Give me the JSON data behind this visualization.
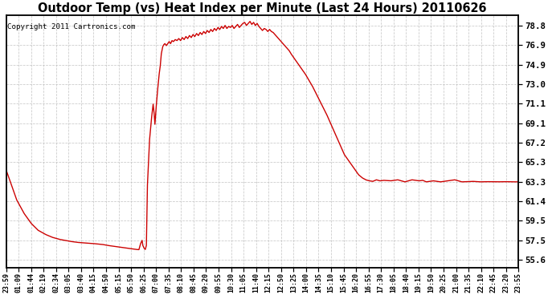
{
  "title": "Outdoor Temp (vs) Heat Index per Minute (Last 24 Hours) 20110626",
  "copyright_text": "Copyright 2011 Cartronics.com",
  "line_color": "#cc0000",
  "background_color": "#ffffff",
  "grid_color": "#bbbbbb",
  "yticks": [
    55.6,
    57.5,
    59.5,
    61.4,
    63.3,
    65.3,
    67.2,
    69.1,
    71.1,
    73.0,
    74.9,
    76.9,
    78.8
  ],
  "ylim": [
    54.8,
    79.8
  ],
  "xtick_labels": [
    "23:59",
    "01:09",
    "01:44",
    "02:19",
    "02:34",
    "03:05",
    "03:40",
    "04:15",
    "04:50",
    "05:15",
    "05:50",
    "06:25",
    "07:00",
    "07:35",
    "08:10",
    "08:45",
    "09:20",
    "09:55",
    "10:30",
    "11:05",
    "11:40",
    "12:15",
    "12:50",
    "13:25",
    "14:00",
    "14:35",
    "15:10",
    "15:45",
    "16:20",
    "16:55",
    "17:30",
    "18:05",
    "18:40",
    "19:15",
    "19:50",
    "20:25",
    "21:00",
    "21:35",
    "22:10",
    "22:45",
    "23:20",
    "23:55"
  ],
  "n_points": 1440,
  "curve_data": [
    [
      0,
      64.5
    ],
    [
      15,
      63.0
    ],
    [
      30,
      61.5
    ],
    [
      50,
      60.2
    ],
    [
      70,
      59.2
    ],
    [
      90,
      58.5
    ],
    [
      110,
      58.1
    ],
    [
      130,
      57.8
    ],
    [
      150,
      57.6
    ],
    [
      165,
      57.5
    ],
    [
      180,
      57.4
    ],
    [
      200,
      57.3
    ],
    [
      220,
      57.25
    ],
    [
      240,
      57.2
    ],
    [
      255,
      57.15
    ],
    [
      270,
      57.1
    ],
    [
      285,
      57.0
    ],
    [
      295,
      56.95
    ],
    [
      305,
      56.9
    ],
    [
      315,
      56.85
    ],
    [
      325,
      56.8
    ],
    [
      335,
      56.75
    ],
    [
      345,
      56.7
    ],
    [
      355,
      56.65
    ],
    [
      365,
      56.6
    ],
    [
      373,
      56.58
    ],
    [
      378,
      57.2
    ],
    [
      382,
      57.5
    ],
    [
      384,
      57.0
    ],
    [
      388,
      56.7
    ],
    [
      391,
      56.6
    ],
    [
      394,
      57.0
    ],
    [
      397,
      63.0
    ],
    [
      403,
      67.5
    ],
    [
      408,
      69.5
    ],
    [
      413,
      71.0
    ],
    [
      416,
      70.0
    ],
    [
      418,
      69.0
    ],
    [
      421,
      70.5
    ],
    [
      425,
      72.2
    ],
    [
      430,
      74.0
    ],
    [
      433,
      74.8
    ],
    [
      436,
      76.0
    ],
    [
      440,
      76.7
    ],
    [
      443,
      76.9
    ],
    [
      446,
      77.0
    ],
    [
      450,
      76.8
    ],
    [
      454,
      77.0
    ],
    [
      458,
      77.2
    ],
    [
      462,
      77.0
    ],
    [
      466,
      77.3
    ],
    [
      470,
      77.2
    ],
    [
      475,
      77.4
    ],
    [
      480,
      77.3
    ],
    [
      485,
      77.5
    ],
    [
      490,
      77.3
    ],
    [
      495,
      77.6
    ],
    [
      500,
      77.4
    ],
    [
      505,
      77.7
    ],
    [
      510,
      77.5
    ],
    [
      515,
      77.8
    ],
    [
      520,
      77.6
    ],
    [
      525,
      77.9
    ],
    [
      530,
      77.7
    ],
    [
      535,
      78.0
    ],
    [
      540,
      77.8
    ],
    [
      545,
      78.1
    ],
    [
      550,
      77.9
    ],
    [
      555,
      78.2
    ],
    [
      560,
      78.0
    ],
    [
      565,
      78.3
    ],
    [
      570,
      78.1
    ],
    [
      575,
      78.4
    ],
    [
      580,
      78.2
    ],
    [
      585,
      78.5
    ],
    [
      590,
      78.3
    ],
    [
      595,
      78.6
    ],
    [
      600,
      78.4
    ],
    [
      605,
      78.7
    ],
    [
      610,
      78.5
    ],
    [
      615,
      78.8
    ],
    [
      620,
      78.5
    ],
    [
      625,
      78.7
    ],
    [
      630,
      78.6
    ],
    [
      635,
      78.8
    ],
    [
      640,
      78.5
    ],
    [
      645,
      78.7
    ],
    [
      650,
      78.9
    ],
    [
      655,
      78.6
    ],
    [
      660,
      78.8
    ],
    [
      665,
      79.0
    ],
    [
      670,
      79.1
    ],
    [
      675,
      78.8
    ],
    [
      680,
      79.0
    ],
    [
      685,
      79.2
    ],
    [
      690,
      78.9
    ],
    [
      695,
      79.1
    ],
    [
      700,
      78.8
    ],
    [
      705,
      79.0
    ],
    [
      710,
      78.7
    ],
    [
      715,
      78.5
    ],
    [
      720,
      78.3
    ],
    [
      725,
      78.5
    ],
    [
      730,
      78.4
    ],
    [
      735,
      78.2
    ],
    [
      740,
      78.4
    ],
    [
      745,
      78.2
    ],
    [
      750,
      78.1
    ],
    [
      755,
      77.9
    ],
    [
      760,
      77.7
    ],
    [
      765,
      77.5
    ],
    [
      770,
      77.3
    ],
    [
      775,
      77.1
    ],
    [
      780,
      76.9
    ],
    [
      785,
      76.7
    ],
    [
      790,
      76.5
    ],
    [
      795,
      76.3
    ],
    [
      800,
      76.0
    ],
    [
      810,
      75.5
    ],
    [
      820,
      75.0
    ],
    [
      830,
      74.5
    ],
    [
      840,
      74.0
    ],
    [
      850,
      73.4
    ],
    [
      860,
      72.8
    ],
    [
      870,
      72.1
    ],
    [
      880,
      71.4
    ],
    [
      890,
      70.7
    ],
    [
      900,
      70.0
    ],
    [
      910,
      69.2
    ],
    [
      920,
      68.4
    ],
    [
      930,
      67.6
    ],
    [
      940,
      66.8
    ],
    [
      950,
      66.0
    ],
    [
      960,
      65.5
    ],
    [
      970,
      65.0
    ],
    [
      980,
      64.5
    ],
    [
      990,
      64.0
    ],
    [
      1000,
      63.7
    ],
    [
      1010,
      63.5
    ],
    [
      1020,
      63.4
    ],
    [
      1030,
      63.35
    ],
    [
      1040,
      63.5
    ],
    [
      1050,
      63.4
    ],
    [
      1060,
      63.45
    ],
    [
      1080,
      63.4
    ],
    [
      1100,
      63.5
    ],
    [
      1120,
      63.3
    ],
    [
      1140,
      63.5
    ],
    [
      1160,
      63.4
    ],
    [
      1170,
      63.45
    ],
    [
      1180,
      63.3
    ],
    [
      1200,
      63.4
    ],
    [
      1220,
      63.3
    ],
    [
      1260,
      63.5
    ],
    [
      1280,
      63.3
    ],
    [
      1310,
      63.35
    ],
    [
      1330,
      63.3
    ],
    [
      1350,
      63.32
    ],
    [
      1380,
      63.3
    ],
    [
      1400,
      63.32
    ],
    [
      1420,
      63.3
    ],
    [
      1439,
      63.3
    ]
  ],
  "figsize": [
    6.2,
    3.35
  ],
  "dpi": 110
}
